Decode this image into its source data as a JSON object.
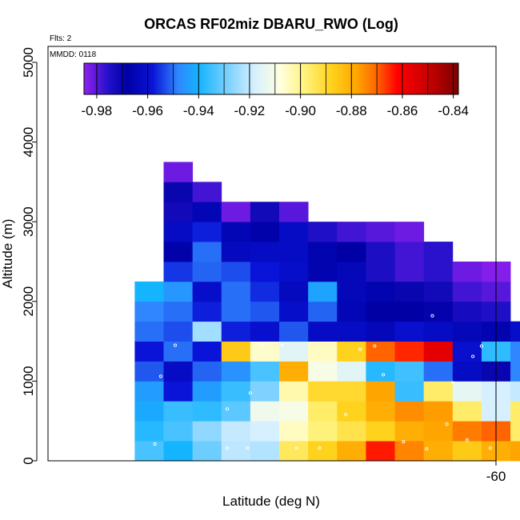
{
  "chart_data": {
    "type": "heatmap",
    "title": "ORCAS RF02miz DBARU_RWO (Log)",
    "annotations": {
      "flights": "Flts: 2",
      "date": "MMDD: 0118"
    },
    "xlabel": "Latitude (deg N)",
    "ylabel": "Altitude (m)",
    "xlim": [
      -61.55,
      -60
    ],
    "ylim": [
      0,
      5200
    ],
    "x_ticks": [
      {
        "value": -60,
        "label": "-60"
      }
    ],
    "y_ticks": [
      {
        "value": 0,
        "label": "0"
      },
      {
        "value": 1000,
        "label": "1000"
      },
      {
        "value": 2000,
        "label": "2000"
      },
      {
        "value": 3000,
        "label": "3000"
      },
      {
        "value": 4000,
        "label": "4000"
      },
      {
        "value": 5000,
        "label": "5000"
      }
    ],
    "colorbar": {
      "range": [
        -0.985,
        -0.838
      ],
      "ticks": [
        "-0.98",
        "-0.96",
        "-0.94",
        "-0.92",
        "-0.90",
        "-0.88",
        "-0.86",
        "-0.84"
      ],
      "stops": [
        {
          "v": -0.985,
          "c": "#8f20ee"
        },
        {
          "v": -0.975,
          "c": "#1f10c8"
        },
        {
          "v": -0.968,
          "c": "#0000a5"
        },
        {
          "v": -0.958,
          "c": "#0a14d8"
        },
        {
          "v": -0.948,
          "c": "#2f86ff"
        },
        {
          "v": -0.94,
          "c": "#14b4ff"
        },
        {
          "v": -0.928,
          "c": "#7fd2ff"
        },
        {
          "v": -0.918,
          "c": "#d6f0ff"
        },
        {
          "v": -0.908,
          "c": "#ffffe0"
        },
        {
          "v": -0.898,
          "c": "#fff27a"
        },
        {
          "v": -0.888,
          "c": "#ffd21e"
        },
        {
          "v": -0.878,
          "c": "#ffa500"
        },
        {
          "v": -0.87,
          "c": "#ff6400"
        },
        {
          "v": -0.862,
          "c": "#ff0000"
        },
        {
          "v": -0.85,
          "c": "#c80000"
        },
        {
          "v": -0.838,
          "c": "#7d0000"
        }
      ]
    },
    "grid": {
      "lat_start": -61.55,
      "lat_step": 0.1,
      "alt_step": 250,
      "columns": [
        {
          "col": 3,
          "rows": [
            -0.934,
            -0.938,
            -0.942,
            -0.944,
            -0.952,
            -0.958,
            -0.95,
            -0.948,
            -0.94
          ]
        },
        {
          "col": 4,
          "rows": [
            -0.94,
            -0.934,
            -0.936,
            -0.958,
            -0.962,
            -0.95,
            -0.953,
            -0.95,
            -0.945,
            -0.955,
            -0.967,
            -0.962,
            -0.972,
            -0.97,
            -0.982
          ]
        },
        {
          "col": 5,
          "rows": [
            -0.93,
            -0.926,
            -0.937,
            -0.944,
            -0.951,
            -0.958,
            -0.924,
            -0.957,
            -0.961,
            -0.951,
            -0.95,
            -0.957,
            -0.965,
            -0.978
          ]
        },
        {
          "col": 6,
          "rows": [
            -0.921,
            -0.92,
            -0.932,
            -0.936,
            -0.946,
            -0.886,
            -0.957,
            -0.95,
            -0.95,
            -0.953,
            -0.963,
            -0.965,
            -0.982
          ]
        },
        {
          "col": 7,
          "rows": [
            -0.922,
            -0.918,
            -0.912,
            -0.928,
            -0.934,
            -0.906,
            -0.96,
            -0.952,
            -0.956,
            -0.958,
            -0.962,
            -0.967,
            -0.972
          ]
        },
        {
          "col": 8,
          "rows": [
            -0.895,
            -0.905,
            -0.91,
            -0.903,
            -0.88,
            -0.915,
            -0.952,
            -0.961,
            -0.963,
            -0.961,
            -0.962,
            -0.962,
            -0.98
          ]
        },
        {
          "col": 9,
          "rows": [
            -0.888,
            -0.898,
            -0.896,
            -0.89,
            -0.91,
            -0.905,
            -0.962,
            -0.951,
            -0.943,
            -0.966,
            -0.966,
            -0.975
          ]
        },
        {
          "col": 10,
          "rows": [
            -0.88,
            -0.893,
            -0.888,
            -0.89,
            -0.915,
            -0.888,
            -0.962,
            -0.965,
            -0.964,
            -0.964,
            -0.968,
            -0.978
          ]
        },
        {
          "col": 11,
          "rows": [
            -0.864,
            -0.888,
            -0.88,
            -0.878,
            -0.938,
            -0.87,
            -0.964,
            -0.968,
            -0.966,
            -0.974,
            -0.974,
            -0.98
          ]
        },
        {
          "col": 12,
          "rows": [
            -0.874,
            -0.88,
            -0.875,
            -0.936,
            -0.935,
            -0.865,
            -0.96,
            -0.968,
            -0.97,
            -0.978,
            -0.978,
            -0.982
          ]
        },
        {
          "col": 13,
          "rows": [
            -0.88,
            -0.878,
            -0.877,
            -0.896,
            -0.95,
            -0.856,
            -0.962,
            -0.969,
            -0.972,
            -0.976,
            -0.976
          ]
        },
        {
          "col": 14,
          "rows": [
            -0.886,
            -0.873,
            -0.896,
            -0.914,
            -0.962,
            -0.96,
            -0.964,
            -0.973,
            -0.978,
            -0.982
          ]
        },
        {
          "col": 15,
          "rows": [
            -0.88,
            -0.87,
            -0.918,
            -0.918,
            -0.97,
            -0.937,
            -0.966,
            -0.975,
            -0.98,
            -0.984
          ]
        },
        {
          "col": 16,
          "rows": [
            -0.878,
            -0.896,
            -0.896,
            -0.92,
            -0.948,
            -0.948,
            -0.961
          ]
        }
      ]
    },
    "markers": [
      {
        "lat": -61.19,
        "alt": 3030
      },
      {
        "lat": -61.31,
        "alt": 2160
      },
      {
        "lat": -61.42,
        "alt": 1300
      },
      {
        "lat": -61.36,
        "alt": 440
      },
      {
        "lat": -61.18,
        "alt": 210
      },
      {
        "lat": -61.27,
        "alt": 160
      },
      {
        "lat": -61.16,
        "alt": 1060
      },
      {
        "lat": -61.11,
        "alt": 1450
      },
      {
        "lat": -60.93,
        "alt": 650
      },
      {
        "lat": -60.93,
        "alt": 160
      },
      {
        "lat": -60.86,
        "alt": 160
      },
      {
        "lat": -60.85,
        "alt": 850
      },
      {
        "lat": -60.81,
        "alt": 1450
      },
      {
        "lat": -60.74,
        "alt": 1450
      },
      {
        "lat": -60.69,
        "alt": 160
      },
      {
        "lat": -60.61,
        "alt": 160
      },
      {
        "lat": -60.52,
        "alt": 580
      },
      {
        "lat": -60.47,
        "alt": 1400
      },
      {
        "lat": -60.42,
        "alt": 1440
      },
      {
        "lat": -60.39,
        "alt": 1080
      },
      {
        "lat": -60.32,
        "alt": 240
      },
      {
        "lat": -60.24,
        "alt": 150
      },
      {
        "lat": -60.22,
        "alt": 1820
      },
      {
        "lat": -60.17,
        "alt": 460
      },
      {
        "lat": -60.15,
        "alt": 980
      },
      {
        "lat": -60.1,
        "alt": 260
      },
      {
        "lat": -60.08,
        "alt": 1310
      },
      {
        "lat": -60.05,
        "alt": 1440
      },
      {
        "lat": -60.02,
        "alt": 160
      }
    ]
  }
}
